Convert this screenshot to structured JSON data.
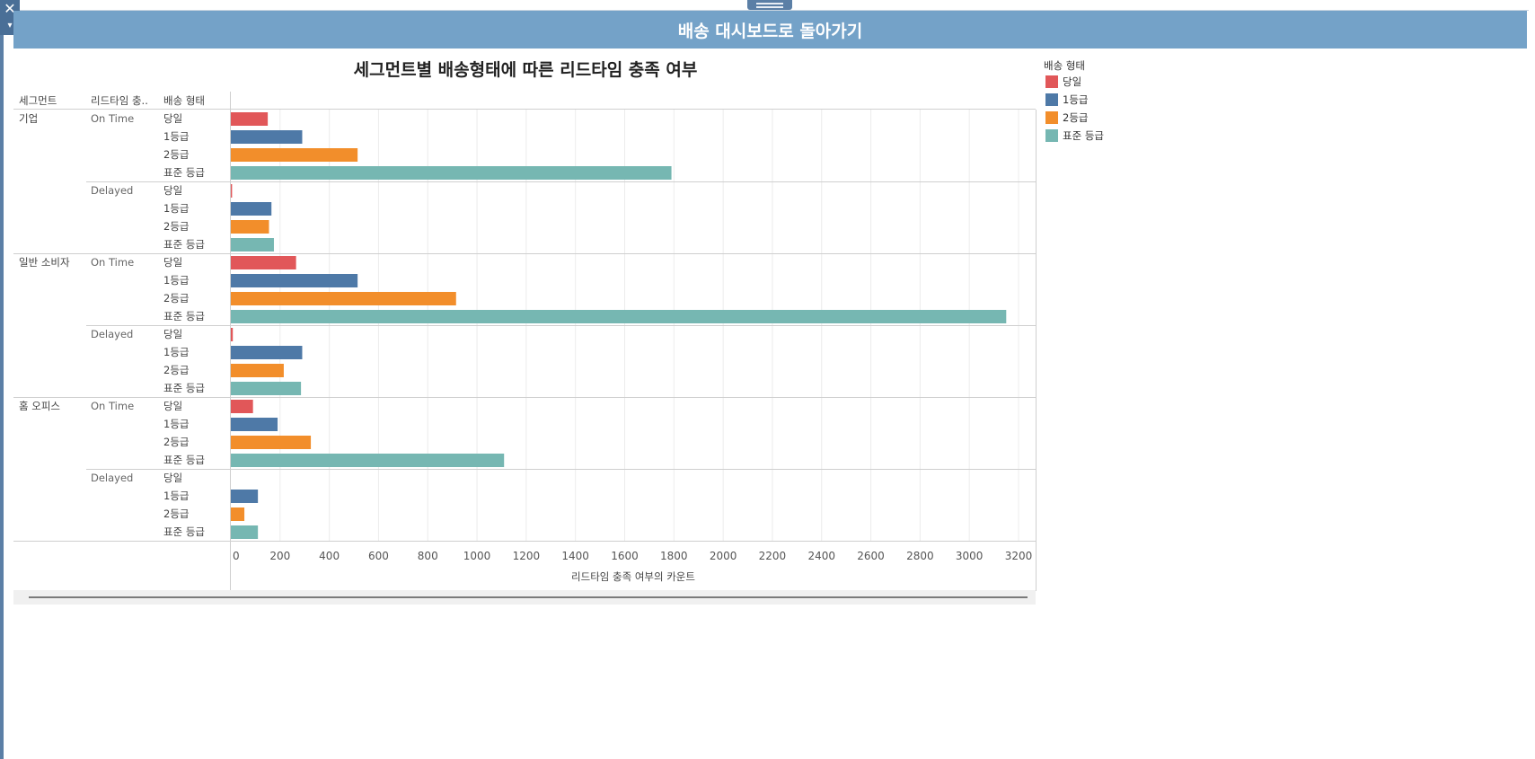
{
  "banner": {
    "label": "배송 대시보드로 돌아가기"
  },
  "controls": {
    "close_glyph": "✕",
    "menu_glyph": "▾"
  },
  "chart_data": {
    "type": "bar",
    "orientation": "horizontal",
    "title": "세그먼트별 배송형태에 따른 리드타임 충족 여부",
    "headers": {
      "segment": "세그먼트",
      "leadtime": "리드타임 충..",
      "shipmode": "배송 형태"
    },
    "xlabel": "리드타임 충족 여부의 카운트",
    "xlim": [
      0,
      3250
    ],
    "xticks": [
      0,
      200,
      400,
      600,
      800,
      1000,
      1200,
      1400,
      1600,
      1800,
      2000,
      2200,
      2400,
      2600,
      2800,
      3000,
      3200
    ],
    "grid": true,
    "legend": {
      "title": "배송 형태",
      "placement": "right",
      "items": [
        {
          "name": "당일",
          "color": "#e15759"
        },
        {
          "name": "1등급",
          "color": "#4e79a7"
        },
        {
          "name": "2등급",
          "color": "#f28e2b"
        },
        {
          "name": "표준 등급",
          "color": "#76b7b2"
        }
      ]
    },
    "groups": [
      {
        "segment": "기업",
        "status": "On Time",
        "values": [
          150,
          290,
          515,
          1790
        ]
      },
      {
        "segment": "",
        "status": "Delayed",
        "values": [
          5,
          165,
          155,
          175
        ]
      },
      {
        "segment": "일반 소비자",
        "status": "On Time",
        "values": [
          265,
          515,
          915,
          3150
        ]
      },
      {
        "segment": "",
        "status": "Delayed",
        "values": [
          8,
          290,
          215,
          285
        ]
      },
      {
        "segment": "홈 오피스",
        "status": "On Time",
        "values": [
          90,
          190,
          325,
          1110
        ]
      },
      {
        "segment": "",
        "status": "Delayed",
        "values": [
          0,
          110,
          55,
          110
        ]
      }
    ]
  }
}
